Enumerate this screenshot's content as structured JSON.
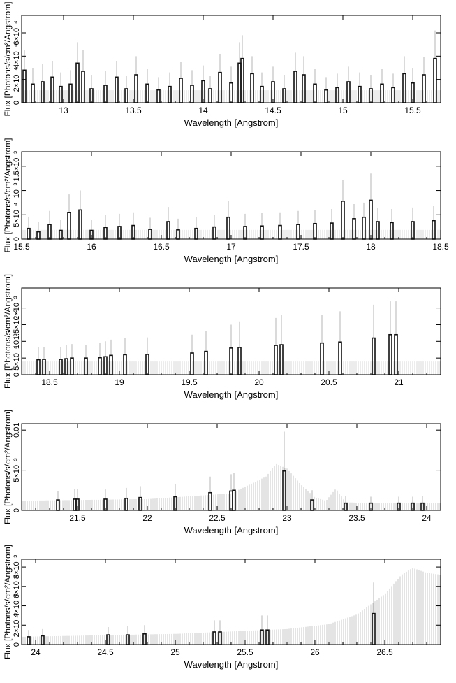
{
  "panels": [
    {
      "x_label": "Wavelength [Angstrom]",
      "y_label": "Flux [Photons/s/cm²/Angstrom]",
      "x_ticks": [
        "13",
        "13.5",
        "14",
        "14.5",
        "15",
        "15.5"
      ],
      "y_ticks": [
        "0",
        "2×10⁻⁴",
        "4×10⁻⁴",
        "6×10⁻⁴"
      ]
    },
    {
      "x_label": "Wavelength [Angstrom]",
      "y_label": "Flux [Photons/s/cm²/Angstrom]",
      "x_ticks": [
        "15.5",
        "16",
        "16.5",
        "17",
        "17.5",
        "18",
        "18.5"
      ],
      "y_ticks": [
        "0",
        "5×10⁻⁴",
        "10⁻³",
        "1.5×10⁻³"
      ]
    },
    {
      "x_label": "Wavelength [Angstrom]",
      "y_label": "Flux [Photons/s/cm²/Angstrom]",
      "x_ticks": [
        "18.5",
        "19",
        "19.5",
        "20",
        "20.5",
        "21"
      ],
      "y_ticks": [
        "0",
        "5×10⁻⁴",
        "10⁻³",
        "1.5×10⁻³",
        "2×10⁻³"
      ]
    },
    {
      "x_label": "Wavelength [Angstrom]",
      "y_label": "Flux [Photons/s/cm²/Angstrom]",
      "x_ticks": [
        "21.5",
        "22",
        "22.5",
        "23",
        "23.5",
        "24"
      ],
      "y_ticks": [
        "0",
        "5×10⁻³",
        "0.01"
      ]
    },
    {
      "x_label": "Wavelength [Angstrom]",
      "y_label": "Flux [Photons/s/cm²/Angstrom]",
      "x_ticks": [
        "24",
        "24.5",
        "25",
        "25.5",
        "26",
        "26.5"
      ],
      "y_ticks": [
        "0",
        "2×10⁻³",
        "4×10⁻³",
        "6×10⁻³",
        "8×10⁻³"
      ]
    }
  ],
  "chart_data": [
    {
      "type": "bar",
      "title": "",
      "xlabel": "Wavelength [Angstrom]",
      "ylabel": "Flux [Photons/s/cm²/Angstrom]",
      "xlim": [
        12.7,
        15.7
      ],
      "ylim": [
        0,
        0.00075
      ],
      "grid": false,
      "series": [
        {
          "x": [
            12.72,
            12.78,
            12.85,
            12.92,
            12.98,
            13.05,
            13.1,
            13.14,
            13.2,
            13.3,
            13.38,
            13.45,
            13.52,
            13.6,
            13.68,
            13.76,
            13.84,
            13.92,
            14.0,
            14.05,
            14.12,
            14.2,
            14.26,
            14.28,
            14.35,
            14.42,
            14.5,
            14.58,
            14.66,
            14.72,
            14.8,
            14.88,
            14.96,
            15.04,
            15.12,
            15.2,
            15.28,
            15.36,
            15.44,
            15.5,
            15.58,
            15.66
          ],
          "values": [
            0.00028,
            0.00016,
            0.00018,
            0.00022,
            0.00014,
            0.00016,
            0.00034,
            0.00027,
            0.00012,
            0.00015,
            0.00022,
            0.00012,
            0.00024,
            0.00016,
            0.00011,
            0.00014,
            0.00021,
            0.00015,
            0.00019,
            0.00012,
            0.00026,
            0.00017,
            0.00034,
            0.00038,
            0.00025,
            0.00014,
            0.00018,
            0.00012,
            0.00027,
            0.00024,
            0.00016,
            0.00011,
            0.00013,
            0.00018,
            0.00014,
            0.00012,
            0.00016,
            0.00013,
            0.00025,
            0.00017,
            0.00024,
            0.00038
          ]
        },
        {
          "x": [
            12.72,
            12.78,
            12.85,
            12.92,
            12.98,
            13.05,
            13.1,
            13.14,
            13.2,
            13.3,
            13.38,
            13.45,
            13.52,
            13.6,
            13.68,
            13.76,
            13.84,
            13.92,
            14.0,
            14.05,
            14.12,
            14.2,
            14.26,
            14.28,
            14.35,
            14.42,
            14.5,
            14.58,
            14.66,
            14.72,
            14.8,
            14.88,
            14.96,
            15.04,
            15.12,
            15.2,
            15.28,
            15.36,
            15.44,
            15.5,
            15.58,
            15.66
          ],
          "values": [
            0.00045,
            0.0003,
            0.00033,
            0.00036,
            0.00026,
            0.00028,
            0.00052,
            0.00045,
            0.00024,
            0.00027,
            0.00036,
            0.00023,
            0.0004,
            0.00029,
            0.00022,
            0.00026,
            0.00035,
            0.00028,
            0.00032,
            0.00023,
            0.00042,
            0.00031,
            0.00052,
            0.00058,
            0.0004,
            0.00026,
            0.00031,
            0.00024,
            0.00043,
            0.0004,
            0.00029,
            0.00022,
            0.00025,
            0.00031,
            0.00026,
            0.00024,
            0.00029,
            0.00025,
            0.0004,
            0.0003,
            0.00039,
            0.00062
          ]
        }
      ]
    },
    {
      "type": "bar",
      "title": "",
      "xlabel": "Wavelength [Angstrom]",
      "ylabel": "Flux [Photons/s/cm²/Angstrom]",
      "xlim": [
        15.5,
        18.5
      ],
      "ylim": [
        0,
        0.0018
      ],
      "grid": false,
      "series": [
        {
          "x": [
            15.55,
            15.62,
            15.7,
            15.78,
            15.84,
            15.92,
            16.0,
            16.1,
            16.2,
            16.3,
            16.42,
            16.55,
            16.62,
            16.75,
            16.88,
            16.98,
            17.1,
            17.22,
            17.35,
            17.48,
            17.6,
            17.72,
            17.8,
            17.88,
            17.95,
            18.0,
            18.05,
            18.15,
            18.3,
            18.45
          ],
          "values": [
            0.00022,
            0.00015,
            0.0003,
            0.00018,
            0.00055,
            0.0006,
            0.00018,
            0.00024,
            0.00026,
            0.00028,
            0.0002,
            0.00036,
            0.00019,
            0.00022,
            0.00025,
            0.00045,
            0.00026,
            0.00027,
            0.00028,
            0.0003,
            0.00032,
            0.00033,
            0.00078,
            0.00042,
            0.00045,
            0.0008,
            0.00036,
            0.00034,
            0.00036,
            0.00038
          ]
        },
        {
          "x": [
            15.55,
            15.62,
            15.7,
            15.78,
            15.84,
            15.92,
            16.0,
            16.1,
            16.2,
            16.3,
            16.42,
            16.55,
            16.62,
            16.75,
            16.88,
            16.98,
            17.1,
            17.22,
            17.35,
            17.48,
            17.6,
            17.72,
            17.8,
            17.88,
            17.95,
            18.0,
            18.05,
            18.15,
            18.3,
            18.45
          ],
          "values": [
            0.00045,
            0.00035,
            0.00058,
            0.0004,
            0.00092,
            0.001,
            0.0004,
            0.0005,
            0.00052,
            0.00055,
            0.00044,
            0.00066,
            0.00042,
            0.00046,
            0.0005,
            0.00078,
            0.00052,
            0.00054,
            0.00055,
            0.00058,
            0.0006,
            0.00062,
            0.00122,
            0.00072,
            0.00075,
            0.00135,
            0.00064,
            0.00062,
            0.00065,
            0.00068
          ]
        }
      ]
    },
    {
      "type": "bar",
      "title": "",
      "xlabel": "Wavelength [Angstrom]",
      "ylabel": "Flux [Photons/s/cm²/Angstrom]",
      "xlim": [
        18.3,
        21.3
      ],
      "ylim": [
        0,
        0.0026
      ],
      "grid": false,
      "series": [
        {
          "x": [
            18.42,
            18.46,
            18.58,
            18.62,
            18.66,
            18.76,
            18.86,
            18.9,
            18.94,
            19.04,
            19.2,
            19.52,
            19.62,
            19.8,
            19.86,
            20.12,
            20.16,
            20.45,
            20.58,
            20.82,
            20.94,
            20.98
          ],
          "values": [
            0.00045,
            0.00046,
            0.00046,
            0.00048,
            0.0005,
            0.0005,
            0.00051,
            0.00054,
            0.00058,
            0.0006,
            0.00061,
            0.00065,
            0.0007,
            0.0008,
            0.00082,
            0.00088,
            0.0009,
            0.00095,
            0.00098,
            0.0011,
            0.0012,
            0.0012
          ]
        },
        {
          "x": [
            18.42,
            18.46,
            18.58,
            18.62,
            18.66,
            18.76,
            18.86,
            18.9,
            18.94,
            19.04,
            19.2,
            19.52,
            19.62,
            19.8,
            19.86,
            20.12,
            20.16,
            20.45,
            20.58,
            20.82,
            20.94,
            20.98
          ],
          "values": [
            0.00082,
            0.00084,
            0.00084,
            0.00088,
            0.00092,
            0.0009,
            0.00095,
            0.001,
            0.00105,
            0.0011,
            0.00112,
            0.0012,
            0.0013,
            0.0015,
            0.0016,
            0.0017,
            0.0018,
            0.0018,
            0.0019,
            0.0021,
            0.0022,
            0.0022
          ]
        }
      ]
    },
    {
      "type": "bar",
      "title": "",
      "xlabel": "Wavelength [Angstrom]",
      "ylabel": "Flux [Photons/s/cm²/Angstrom]",
      "xlim": [
        21.1,
        24.1
      ],
      "ylim": [
        0,
        0.0108
      ],
      "grid": false,
      "series": [
        {
          "x": [
            21.36,
            21.48,
            21.5,
            21.7,
            21.85,
            21.95,
            22.2,
            22.45,
            22.6,
            22.62,
            22.98,
            23.18,
            23.42,
            23.6,
            23.8,
            23.9,
            23.97
          ],
          "values": [
            0.0013,
            0.0014,
            0.0014,
            0.0014,
            0.0015,
            0.0016,
            0.0017,
            0.0022,
            0.0024,
            0.0025,
            0.0049,
            0.0013,
            0.0009,
            0.0009,
            0.0009,
            0.0009,
            0.0009
          ]
        },
        {
          "x": [
            21.36,
            21.48,
            21.5,
            21.7,
            21.85,
            21.95,
            22.2,
            22.45,
            22.6,
            22.62,
            22.98,
            23.18,
            23.42,
            23.6,
            23.8,
            23.9,
            23.97
          ],
          "values": [
            0.0024,
            0.0027,
            0.0027,
            0.0026,
            0.0028,
            0.003,
            0.0033,
            0.0042,
            0.0045,
            0.0047,
            0.0098,
            0.0025,
            0.0018,
            0.0017,
            0.0017,
            0.0017,
            0.0018
          ]
        },
        {
          "name": "",
          "x": [
            21.1,
            22.0,
            22.6,
            22.85,
            22.92,
            23.0,
            23.1,
            23.2,
            23.28,
            23.35,
            23.42,
            23.6,
            24.1
          ],
          "values": [
            0.0012,
            0.0014,
            0.0021,
            0.0042,
            0.0058,
            0.0052,
            0.0032,
            0.0016,
            0.0012,
            0.0027,
            0.001,
            0.0009,
            0.0009
          ]
        }
      ]
    },
    {
      "type": "bar",
      "title": "",
      "xlabel": "Wavelength [Angstrom]",
      "ylabel": "Flux [Photons/s/cm²/Angstrom]",
      "xlim": [
        23.9,
        26.9
      ],
      "ylim": [
        0,
        0.0088
      ],
      "grid": false,
      "series": [
        {
          "x": [
            23.95,
            24.05,
            24.52,
            24.66,
            24.78,
            25.28,
            25.32,
            25.62,
            25.66,
            26.42
          ],
          "values": [
            0.0008,
            0.0009,
            0.001,
            0.001,
            0.0011,
            0.0013,
            0.0013,
            0.0015,
            0.0015,
            0.0032
          ]
        },
        {
          "x": [
            23.95,
            24.05,
            24.52,
            24.66,
            24.78,
            25.28,
            25.32,
            25.62,
            25.66,
            26.42
          ],
          "values": [
            0.0015,
            0.0016,
            0.0018,
            0.0019,
            0.002,
            0.0025,
            0.0025,
            0.003,
            0.003,
            0.0064
          ]
        },
        {
          "name": "",
          "x": [
            23.9,
            25.0,
            25.8,
            26.1,
            26.3,
            26.5,
            26.62,
            26.7,
            26.8,
            26.9
          ],
          "values": [
            0.0008,
            0.0011,
            0.0016,
            0.0021,
            0.0031,
            0.0052,
            0.0072,
            0.0079,
            0.0074,
            0.0072
          ]
        }
      ]
    }
  ]
}
